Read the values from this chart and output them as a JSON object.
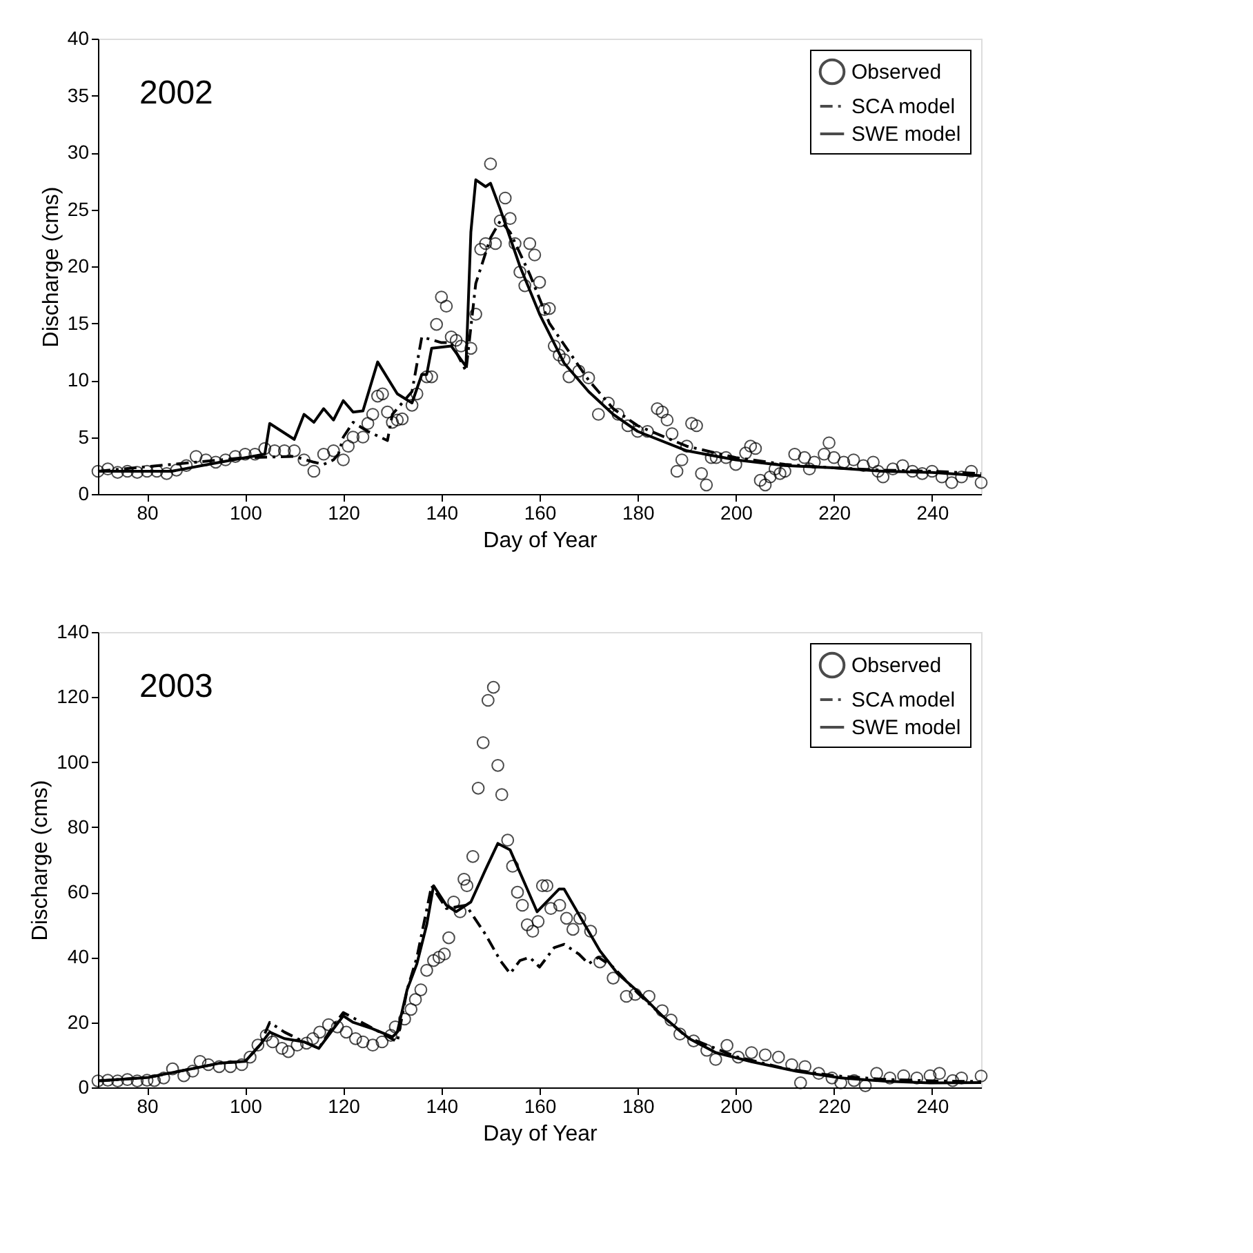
{
  "chart_data": [
    {
      "type": "line",
      "annotations": [
        "2002"
      ],
      "xlabel": "Day of Year",
      "ylabel": "Discharge (cms)",
      "xlim": [
        70,
        250
      ],
      "xticks": [
        80,
        100,
        120,
        140,
        160,
        180,
        200,
        220,
        240
      ],
      "ylim": [
        0,
        40
      ],
      "yticks": [
        0,
        5,
        10,
        15,
        20,
        25,
        30,
        35,
        40
      ],
      "grid": false,
      "legend": "top right",
      "series": [
        {
          "name": "Observed",
          "type": "scatter",
          "marker": "circle",
          "color": "#000000",
          "x": [
            70,
            72,
            74,
            76,
            78,
            80,
            82,
            84,
            86,
            88,
            90,
            92,
            94,
            96,
            98,
            100,
            102,
            104,
            106,
            108,
            110,
            112,
            114,
            116,
            118,
            120,
            121,
            122,
            124,
            125,
            126,
            127,
            128,
            129,
            130,
            131,
            132,
            134,
            135,
            137,
            138,
            139,
            140,
            141,
            142,
            143,
            144,
            146,
            147,
            148,
            149,
            150,
            151,
            152,
            153,
            154,
            155,
            156,
            157,
            158,
            159,
            160,
            161,
            162,
            163,
            164,
            165,
            166,
            168,
            170,
            172,
            174,
            176,
            178,
            180,
            182,
            184,
            185,
            186,
            187,
            188,
            189,
            190,
            191,
            192,
            193,
            194,
            195,
            196,
            198,
            200,
            202,
            203,
            204,
            205,
            206,
            207,
            208,
            209,
            210,
            212,
            214,
            215,
            216,
            218,
            219,
            220,
            222,
            224,
            226,
            228,
            229,
            230,
            232,
            234,
            236,
            238,
            240,
            242,
            244,
            246,
            248,
            250
          ],
          "values": [
            2,
            2.2,
            1.9,
            2,
            1.9,
            2,
            2,
            1.8,
            2.1,
            2.5,
            3.3,
            3,
            2.8,
            3,
            3.3,
            3.5,
            3.5,
            4,
            3.8,
            3.8,
            3.8,
            3,
            2,
            3.5,
            3.8,
            3,
            4.2,
            5,
            5,
            6.2,
            7,
            8.6,
            8.8,
            7.2,
            6.3,
            6.5,
            6.6,
            7.8,
            8.8,
            10.3,
            10.3,
            14.9,
            17.3,
            16.5,
            13.8,
            13.5,
            13,
            12.8,
            15.8,
            21.5,
            22,
            29,
            22,
            24,
            26,
            24.2,
            22,
            19.5,
            18.3,
            22,
            21,
            18.6,
            16.2,
            16.3,
            13,
            12.2,
            11.8,
            10.3,
            10.8,
            10.2,
            7,
            8,
            7,
            6,
            5.5,
            5.5,
            7.5,
            7.2,
            6.5,
            5.3,
            2,
            3,
            4.2,
            6.2,
            6,
            1.8,
            0.8,
            3.2,
            3.2,
            3.2,
            2.6,
            3.6,
            4.2,
            4,
            1.2,
            0.8,
            1.5,
            2.2,
            1.8,
            2,
            3.5,
            3.2,
            2.2,
            2.8,
            3.5,
            4.5,
            3.2,
            2.8,
            3,
            2.5,
            2.8,
            2,
            1.5,
            2.2,
            2.5,
            2,
            1.8,
            2,
            1.5,
            1,
            1.5,
            2,
            1
          ]
        },
        {
          "name": "SCA model",
          "line_style": "dashed",
          "color": "#000000",
          "x": [
            70,
            100,
            110,
            114,
            116,
            118,
            119,
            120,
            122,
            125,
            129,
            130,
            134,
            136,
            140,
            142,
            145,
            147,
            150,
            152,
            154,
            158,
            162,
            166,
            170,
            175,
            180,
            190,
            200,
            210,
            220,
            230,
            240,
            250
          ],
          "values": [
            2,
            3.2,
            3.3,
            2.8,
            2.6,
            3,
            3.5,
            5,
            6.3,
            5.5,
            4.7,
            7,
            9,
            13.8,
            13.3,
            13.3,
            10.8,
            18.5,
            22.5,
            24,
            23,
            19.3,
            15,
            12.5,
            10,
            7.5,
            6,
            4.2,
            3.2,
            2.6,
            2.3,
            2.1,
            2,
            1.8
          ]
        },
        {
          "name": "SWE model",
          "line_style": "solid",
          "color": "#000000",
          "x": [
            70,
            85,
            95,
            104,
            105,
            110,
            112,
            114,
            116,
            118,
            120,
            122,
            124,
            127,
            131,
            134,
            136,
            137,
            138,
            142,
            145,
            146,
            147,
            149,
            150,
            152,
            156,
            160,
            165,
            170,
            175,
            180,
            190,
            200,
            210,
            220,
            230,
            240,
            250
          ],
          "values": [
            2,
            2,
            2.8,
            3.5,
            6.2,
            4.8,
            7,
            6.3,
            7.5,
            6.5,
            8.2,
            7.2,
            7.3,
            11.6,
            8.8,
            8,
            10.5,
            10.5,
            12.8,
            13,
            11.2,
            23,
            27.6,
            27,
            27.3,
            25,
            20,
            15.8,
            11.5,
            9,
            7,
            5.5,
            3.8,
            3,
            2.5,
            2.3,
            2,
            1.9,
            1.6
          ]
        }
      ]
    },
    {
      "type": "line",
      "annotations": [
        "2003"
      ],
      "xlabel": "Day of Year",
      "ylabel": "Discharge (cms)",
      "xlim": [
        70,
        250
      ],
      "xticks": [
        80,
        100,
        120,
        140,
        160,
        180,
        200,
        220,
        240
      ],
      "ylim": [
        0,
        140
      ],
      "yticks": [
        0,
        20,
        40,
        60,
        80,
        100,
        120,
        140
      ],
      "grid": false,
      "legend": "top right",
      "series": [
        {
          "name": "Observed",
          "type": "scatter",
          "marker": "circle",
          "color": "#000000",
          "x": [
            70,
            72,
            74,
            76,
            78,
            80,
            81.5,
            83.4,
            85.2,
            87.5,
            89.3,
            90.8,
            92.5,
            94.7,
            97,
            99.3,
            101,
            102.6,
            104.3,
            105.6,
            107.5,
            108.8,
            110.6,
            112.5,
            113.8,
            115.2,
            117,
            118.8,
            120.6,
            122.5,
            124,
            126,
            127.9,
            129.7,
            130.6,
            132.5,
            133.8,
            134.7,
            135.8,
            137,
            138.4,
            139.5,
            140.6,
            141.5,
            142.5,
            143.8,
            144.6,
            145.2,
            146.4,
            147.5,
            148.5,
            149.5,
            150.6,
            151.5,
            152.3,
            153.5,
            154.5,
            155.5,
            156.5,
            157.5,
            158.6,
            159.7,
            160.6,
            161.5,
            162.3,
            164.1,
            165.5,
            166.8,
            168.2,
            170.4,
            172.3,
            175,
            177.7,
            179.5,
            182.3,
            185,
            186.8,
            188.6,
            191.4,
            194.1,
            195.9,
            198.2,
            200.5,
            203.2,
            206,
            208.7,
            211.4,
            213.2,
            214.1,
            216.9,
            219.6,
            221.4,
            224.1,
            226.4,
            228.7,
            231.4,
            234.2,
            236.9,
            239.6,
            241.5,
            244.2,
            246,
            250
          ],
          "values": [
            2,
            2.2,
            2,
            2.4,
            2,
            2.2,
            2.1,
            2.9,
            5.7,
            3.6,
            5,
            8,
            7,
            6.4,
            6.4,
            7,
            9.3,
            13,
            16,
            14,
            12,
            11,
            13,
            13.6,
            15,
            17,
            19.3,
            18.6,
            17,
            15,
            14,
            13,
            14,
            16,
            18.6,
            21,
            24,
            27,
            30,
            36,
            39,
            40,
            41,
            46,
            57,
            54,
            64,
            62,
            71,
            92,
            106,
            119,
            123,
            99,
            90,
            76,
            68,
            60,
            56,
            50,
            48,
            51,
            62,
            62,
            55,
            56,
            52,
            48.6,
            52,
            48,
            38.6,
            33.6,
            28,
            28.6,
            28,
            23.6,
            20.7,
            16.4,
            14.3,
            11.4,
            8.6,
            12.9,
            9.3,
            10.7,
            10,
            9.3,
            7,
            1.4,
            6.4,
            4.3,
            2.9,
            1.4,
            2.1,
            0.5,
            4.3,
            2.9,
            3.6,
            2.9,
            3.6,
            4.3,
            2.1,
            2.9,
            3.5
          ]
        },
        {
          "name": "SCA model",
          "line_style": "dashed",
          "color": "#000000",
          "x": [
            70,
            80,
            90,
            95,
            100,
            103,
            105,
            108,
            112,
            115,
            118,
            120,
            125,
            131,
            133,
            135,
            138,
            141,
            145,
            149,
            152,
            154,
            156,
            158,
            160,
            163,
            165,
            168,
            170,
            172,
            175,
            180,
            185,
            190,
            200,
            210,
            220,
            230,
            240,
            250
          ],
          "values": [
            2,
            3,
            6,
            7.5,
            8,
            13,
            20,
            17,
            14,
            12,
            19,
            23,
            19,
            14,
            30,
            40,
            62,
            55,
            56,
            47,
            39,
            35,
            39,
            40,
            37,
            43,
            44,
            41,
            38,
            40,
            37,
            29,
            22,
            15.5,
            9.5,
            5.8,
            3.6,
            2.5,
            2,
            1.8
          ]
        },
        {
          "name": "SWE model",
          "line_style": "solid",
          "color": "#000000",
          "x": [
            70,
            80,
            90,
            95,
            100,
            103,
            105,
            108,
            112,
            115,
            118,
            120,
            122,
            126,
            130,
            131,
            133,
            135,
            137,
            138.4,
            141,
            143,
            146,
            149,
            151.5,
            154,
            159.5,
            164,
            165,
            172.3,
            175.9,
            180.4,
            185,
            190.5,
            195.9,
            203.2,
            212.3,
            221.4,
            230.5,
            239.6,
            250
          ],
          "values": [
            2,
            3,
            6,
            7.5,
            8,
            13,
            17,
            15,
            14,
            12,
            18,
            22,
            20,
            18,
            15.5,
            17,
            30,
            38,
            50,
            62,
            56,
            54,
            57,
            67,
            75,
            73,
            54,
            61,
            61,
            42,
            35,
            29,
            22,
            15,
            10.7,
            7.9,
            5,
            2.9,
            1.9,
            1.4,
            1.5
          ]
        }
      ]
    }
  ]
}
